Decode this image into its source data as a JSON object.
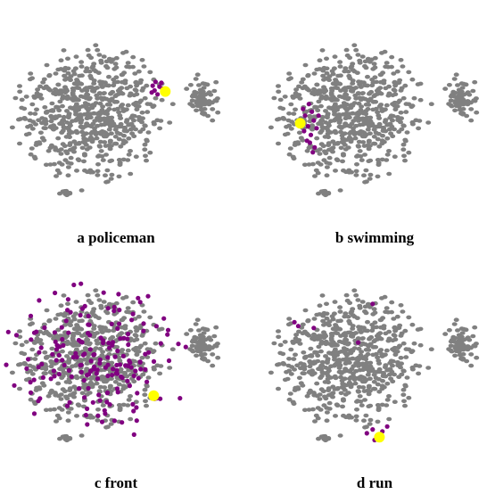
{
  "colors": {
    "background_points": "#808080",
    "neighbor_points": "#800080",
    "query_point": "#ffff00"
  },
  "chart_data": [
    {
      "type": "scatter",
      "caption": "a policeman",
      "xlabel": "",
      "ylabel": "",
      "xlim": [
        0,
        240
      ],
      "ylim": [
        0,
        180
      ],
      "grid": false,
      "query": {
        "x": 171,
        "y": 67
      },
      "neighbors": [
        [
          158,
          61
        ],
        [
          161,
          57
        ],
        [
          165,
          62
        ],
        [
          160,
          66
        ],
        [
          167,
          58
        ],
        [
          163,
          70
        ],
        [
          157,
          68
        ],
        [
          168,
          64
        ]
      ]
    },
    {
      "type": "scatter",
      "caption": "b swimming",
      "xlabel": "",
      "ylabel": "",
      "xlim": [
        0,
        240
      ],
      "ylim": [
        0,
        180
      ],
      "grid": false,
      "query": {
        "x": 43,
        "y": 100
      },
      "neighbors": [
        [
          52,
          80
        ],
        [
          55,
          88
        ],
        [
          48,
          92
        ],
        [
          57,
          97
        ],
        [
          51,
          103
        ],
        [
          47,
          108
        ],
        [
          54,
          112
        ],
        [
          60,
          105
        ],
        [
          53,
          120
        ],
        [
          58,
          125
        ],
        [
          50,
          118
        ],
        [
          62,
          92
        ],
        [
          46,
          85
        ],
        [
          56,
          130
        ]
      ]
    },
    {
      "type": "scatter",
      "caption": "c front",
      "xlabel": "",
      "ylabel": "",
      "xlim": [
        0,
        240
      ],
      "ylim": [
        0,
        180
      ],
      "grid": false,
      "query": {
        "x": 159,
        "y": 128
      },
      "neighbors": []
    },
    {
      "type": "scatter",
      "caption": "d run",
      "xlabel": "",
      "ylabel": "",
      "xlim": [
        0,
        240
      ],
      "ylim": [
        0,
        180
      ],
      "grid": false,
      "query": {
        "x": 125,
        "y": 171
      },
      "neighbors": [
        [
          37,
          52
        ],
        [
          41,
          56
        ],
        [
          57,
          58
        ],
        [
          118,
          33
        ],
        [
          103,
          73
        ],
        [
          112,
          167
        ],
        [
          118,
          163
        ],
        [
          128,
          165
        ],
        [
          133,
          160
        ],
        [
          120,
          174
        ]
      ]
    }
  ]
}
